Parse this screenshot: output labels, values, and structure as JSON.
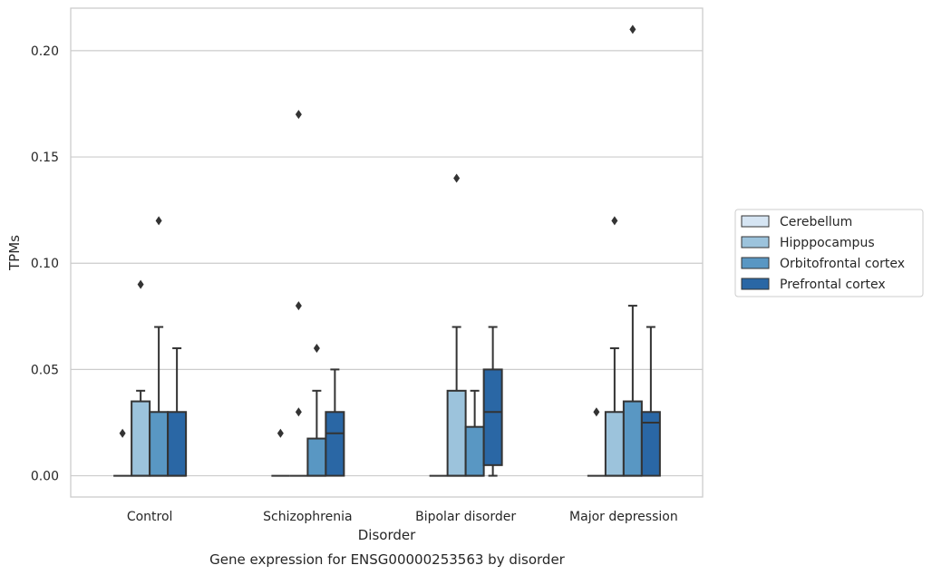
{
  "chart_data": {
    "type": "box",
    "caption": "Gene expression for ENSG00000253563 by disorder",
    "xlabel": "Disorder",
    "ylabel": "TPMs",
    "ylim": [
      -0.01,
      0.22
    ],
    "yticks": [
      0.0,
      0.05,
      0.1,
      0.15,
      0.2
    ],
    "ytick_labels": [
      "0.00",
      "0.05",
      "0.10",
      "0.15",
      "0.20"
    ],
    "grid": "horizontal",
    "legend_position": "right",
    "categories": [
      "Control",
      "Schizophrenia",
      "Bipolar disorder",
      "Major depression"
    ],
    "series": [
      {
        "name": "Cerebellum",
        "color": "#d6e5f3",
        "boxes": [
          {
            "q1": 0,
            "median": 0,
            "q3": 0,
            "whisker_low": 0,
            "whisker_high": 0,
            "outliers": [
              0.02
            ]
          },
          {
            "q1": 0,
            "median": 0,
            "q3": 0,
            "whisker_low": 0,
            "whisker_high": 0,
            "outliers": [
              0.02
            ]
          },
          {
            "q1": 0,
            "median": 0,
            "q3": 0,
            "whisker_low": 0,
            "whisker_high": 0,
            "outliers": []
          },
          {
            "q1": 0,
            "median": 0,
            "q3": 0,
            "whisker_low": 0,
            "whisker_high": 0,
            "outliers": [
              0.03
            ]
          }
        ]
      },
      {
        "name": "Hipppocampus",
        "color": "#9cc3dc",
        "boxes": [
          {
            "q1": 0,
            "median": 0,
            "q3": 0.035,
            "whisker_low": 0,
            "whisker_high": 0.04,
            "outliers": [
              0.09
            ]
          },
          {
            "q1": 0,
            "median": 0,
            "q3": 0,
            "whisker_low": 0,
            "whisker_high": 0,
            "outliers": [
              0.03,
              0.08,
              0.17
            ]
          },
          {
            "q1": 0,
            "median": 0,
            "q3": 0.04,
            "whisker_low": 0,
            "whisker_high": 0.07,
            "outliers": [
              0.14
            ]
          },
          {
            "q1": 0,
            "median": 0,
            "q3": 0.03,
            "whisker_low": 0,
            "whisker_high": 0.06,
            "outliers": [
              0.12
            ]
          }
        ]
      },
      {
        "name": "Orbitofrontal cortex",
        "color": "#5997c3",
        "boxes": [
          {
            "q1": 0,
            "median": 0,
            "q3": 0.03,
            "whisker_low": 0,
            "whisker_high": 0.07,
            "outliers": [
              0.12
            ]
          },
          {
            "q1": 0,
            "median": 0,
            "q3": 0.0175,
            "whisker_low": 0,
            "whisker_high": 0.04,
            "outliers": [
              0.06
            ]
          },
          {
            "q1": 0,
            "median": 0,
            "q3": 0.023,
            "whisker_low": 0,
            "whisker_high": 0.04,
            "outliers": []
          },
          {
            "q1": 0,
            "median": 0,
            "q3": 0.035,
            "whisker_low": 0,
            "whisker_high": 0.08,
            "outliers": [
              0.21
            ]
          }
        ]
      },
      {
        "name": "Prefrontal cortex",
        "color": "#2a67a5",
        "boxes": [
          {
            "q1": 0,
            "median": 0,
            "q3": 0.03,
            "whisker_low": 0,
            "whisker_high": 0.06,
            "outliers": []
          },
          {
            "q1": 0,
            "median": 0.02,
            "q3": 0.03,
            "whisker_low": 0,
            "whisker_high": 0.05,
            "outliers": []
          },
          {
            "q1": 0.005,
            "median": 0.03,
            "q3": 0.05,
            "whisker_low": 0,
            "whisker_high": 0.07,
            "outliers": []
          },
          {
            "q1": 0,
            "median": 0.025,
            "q3": 0.03,
            "whisker_low": 0,
            "whisker_high": 0.07,
            "outliers": []
          }
        ]
      }
    ]
  }
}
